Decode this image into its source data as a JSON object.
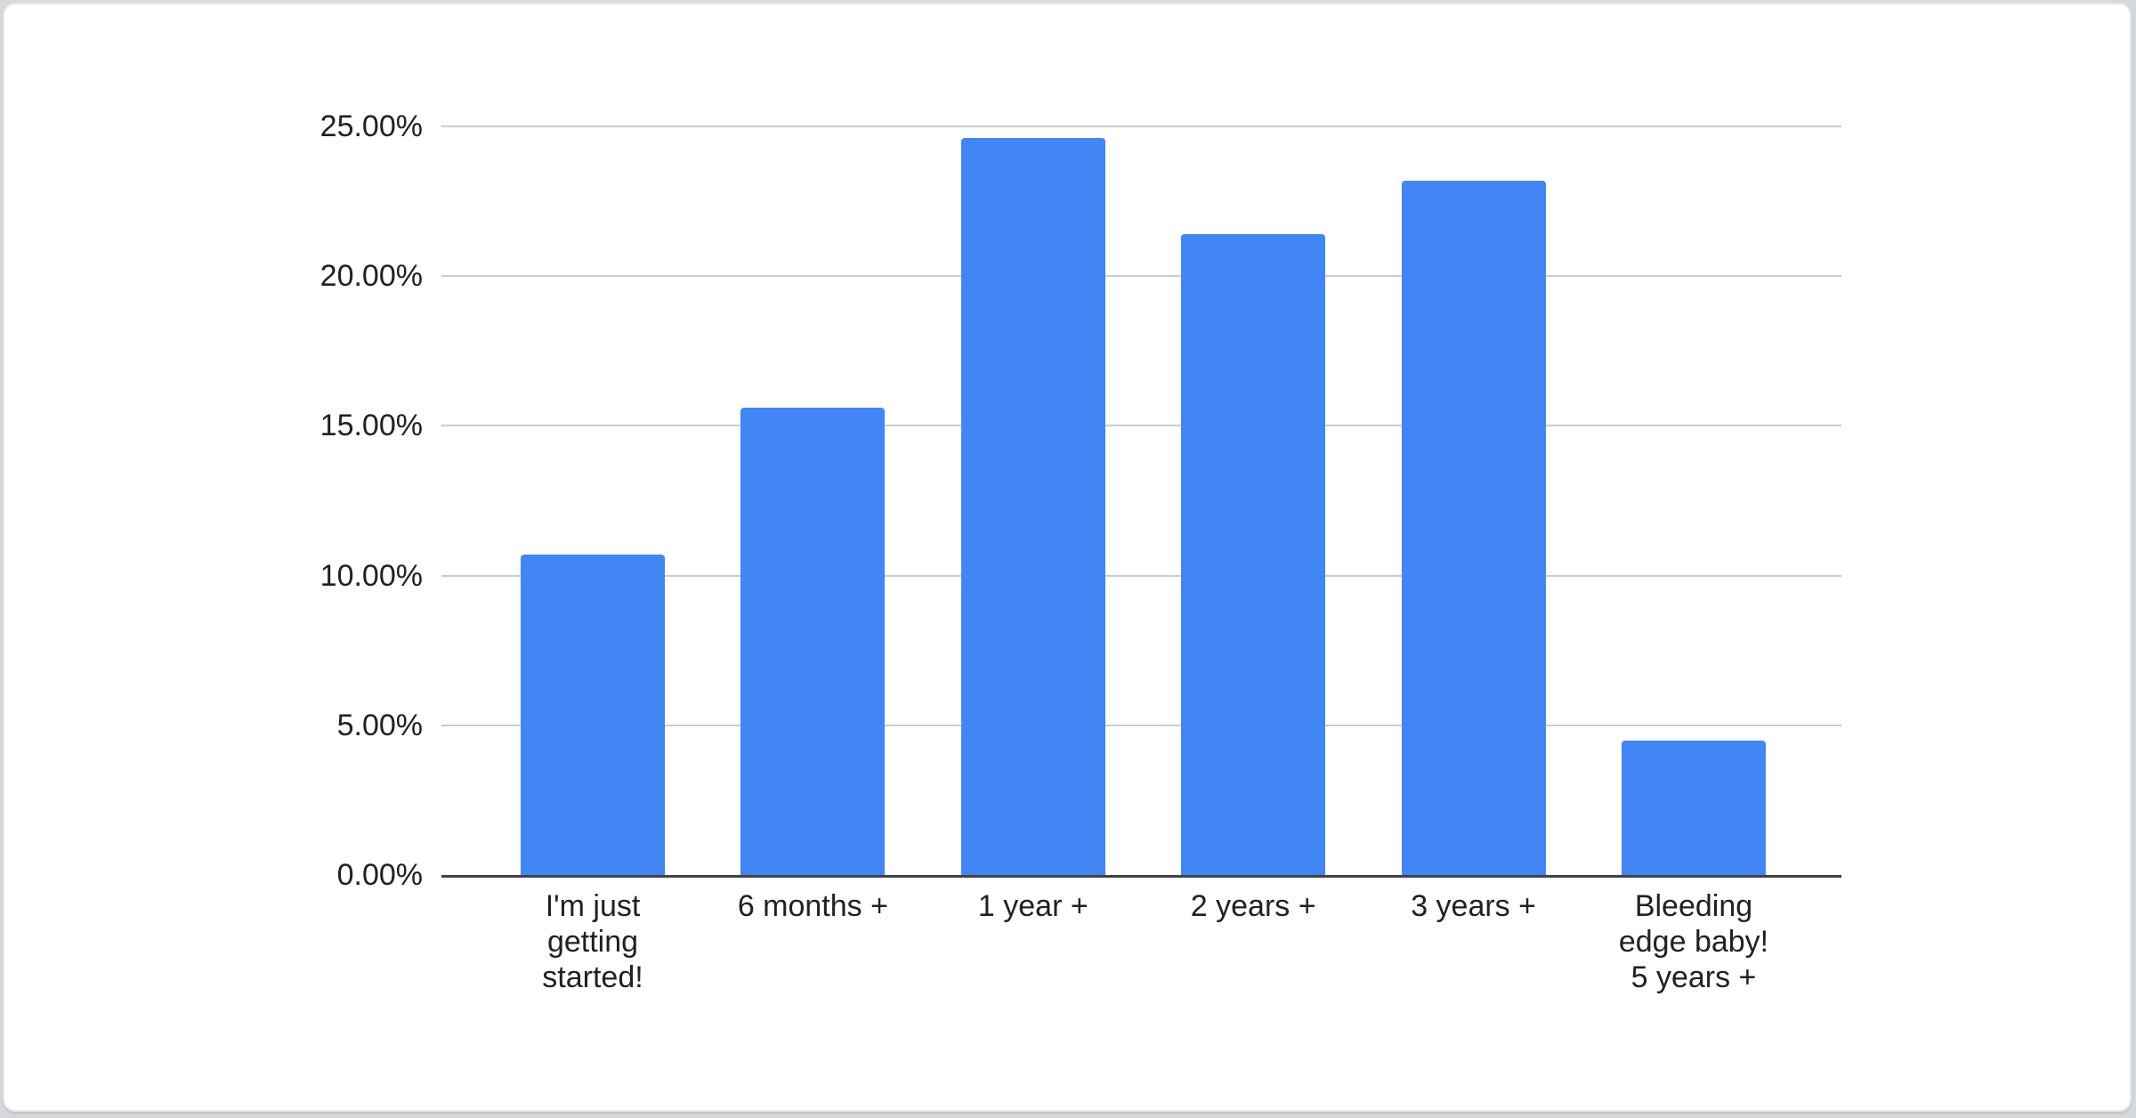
{
  "page": {
    "background_color": "#d6d9dc",
    "card_background": "#ffffff",
    "card_border_color": "#e7e8ea"
  },
  "chart_data": {
    "type": "bar",
    "title": "",
    "xlabel": "",
    "ylabel": "",
    "categories": [
      "I'm just getting started!",
      "6 months +",
      "1 year +",
      "2 years +",
      "3 years +",
      "Bleeding edge baby! 5 years +"
    ],
    "category_lines": [
      [
        "I'm just",
        "getting",
        "started!"
      ],
      [
        "6 months +"
      ],
      [
        "1 year +"
      ],
      [
        "2 years +"
      ],
      [
        "3 years +"
      ],
      [
        "Bleeding",
        "edge baby!",
        "5 years +"
      ]
    ],
    "values": [
      10.7,
      15.6,
      24.6,
      21.4,
      23.2,
      4.5
    ],
    "value_unit": "%",
    "ylim": [
      0,
      25
    ],
    "y_ticks": [
      {
        "value": 0,
        "label": "0.00%"
      },
      {
        "value": 5,
        "label": "5.00%"
      },
      {
        "value": 10,
        "label": "10.00%"
      },
      {
        "value": 15,
        "label": "15.00%"
      },
      {
        "value": 20,
        "label": "20.00%"
      },
      {
        "value": 25,
        "label": "25.00%"
      }
    ],
    "grid": true,
    "legend_position": "none",
    "bar_color": "#4285f4",
    "gridline_color": "#cccccc",
    "axis_line_color": "#424242",
    "label_color": "#212121"
  }
}
